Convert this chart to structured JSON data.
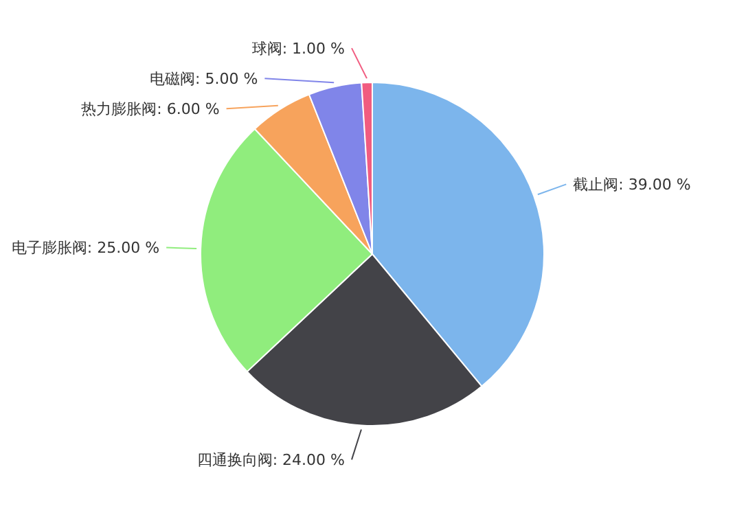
{
  "chart_data": {
    "type": "pie",
    "categories": [
      "截止阀",
      "四通换向阀",
      "电子膨胀阀",
      "热力膨胀阀",
      "电磁阀",
      "球阀"
    ],
    "values": [
      39,
      24,
      25,
      6,
      5,
      1
    ],
    "value_labels": [
      "39.00 %",
      "24.00 %",
      "25.00 %",
      "6.00 %",
      "5.00 %",
      "1.00 %"
    ],
    "colors": [
      "#7cb5ec",
      "#434348",
      "#90ed7d",
      "#f7a35c",
      "#8085e9",
      "#f15c80"
    ]
  }
}
